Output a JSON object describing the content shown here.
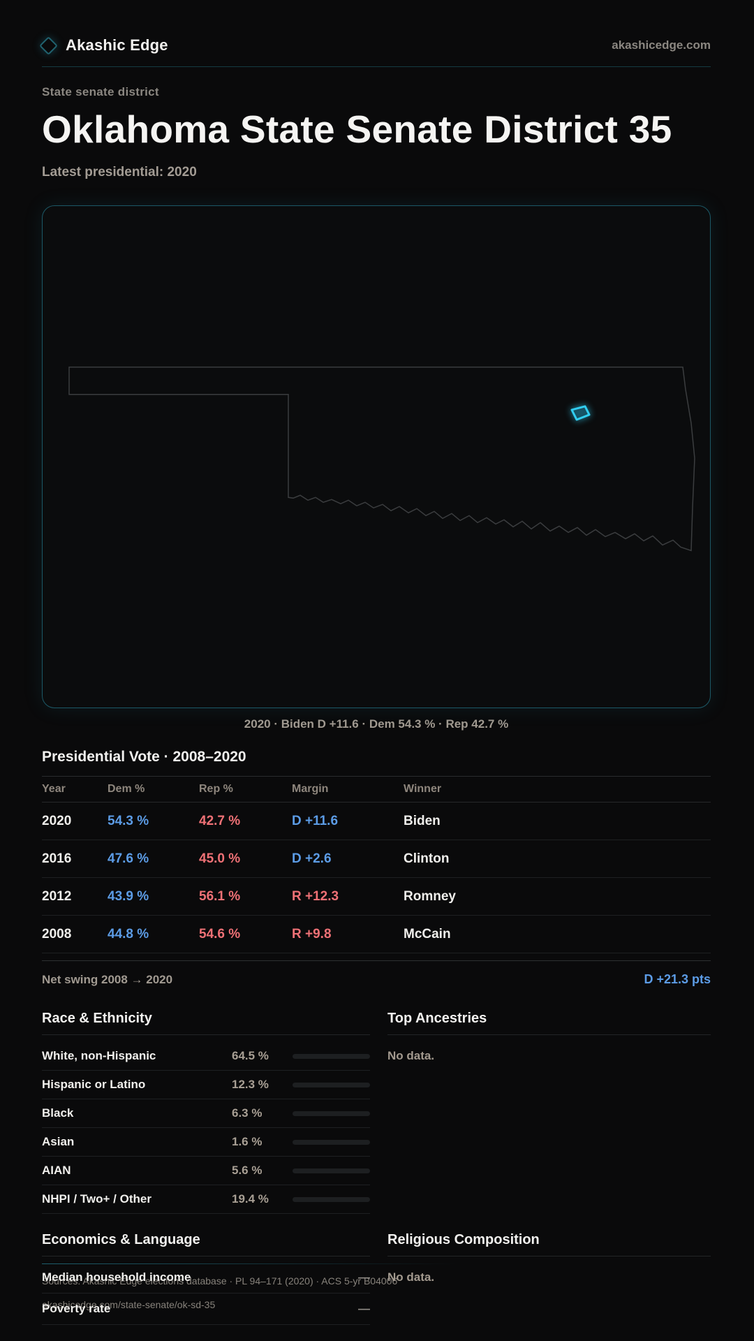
{
  "header": {
    "brand": "Akashic Edge",
    "domain": "akashicedge.com"
  },
  "hero": {
    "eyebrow": "State senate district",
    "title": "Oklahoma State Senate District 35",
    "subtitle": "Latest presidential: 2020"
  },
  "map": {
    "caption": "2020 · Biden D +11.6 · Dem 54.3 % · Rep 42.7 %"
  },
  "vote_table": {
    "title": "Presidential Vote · 2008–2020",
    "columns": [
      "Year",
      "Dem %",
      "Rep %",
      "Margin",
      "Winner"
    ],
    "rows": [
      {
        "year": "2020",
        "dem": "54.3 %",
        "rep": "42.7 %",
        "margin": "D +11.6",
        "margin_party": "D",
        "winner": "Biden"
      },
      {
        "year": "2016",
        "dem": "47.6 %",
        "rep": "45.0 %",
        "margin": "D +2.6",
        "margin_party": "D",
        "winner": "Clinton"
      },
      {
        "year": "2012",
        "dem": "43.9 %",
        "rep": "56.1 %",
        "margin": "R +12.3",
        "margin_party": "R",
        "winner": "Romney"
      },
      {
        "year": "2008",
        "dem": "44.8 %",
        "rep": "54.6 %",
        "margin": "R +9.8",
        "margin_party": "R",
        "winner": "McCain"
      }
    ],
    "net_swing_label": "Net swing 2008 → 2020",
    "net_swing_value": "D +21.3 pts"
  },
  "race": {
    "title": "Race & Ethnicity",
    "rows": [
      {
        "label": "White, non-Hispanic",
        "value": "64.5 %",
        "pct": 64.5
      },
      {
        "label": "Hispanic or Latino",
        "value": "12.3 %",
        "pct": 12.3
      },
      {
        "label": "Black",
        "value": "6.3 %",
        "pct": 6.3
      },
      {
        "label": "Asian",
        "value": "1.6 %",
        "pct": 1.6
      },
      {
        "label": "AIAN",
        "value": "5.6 %",
        "pct": 5.6
      },
      {
        "label": "NHPI / Two+ / Other",
        "value": "19.4 %",
        "pct": 19.4
      }
    ]
  },
  "ancestries": {
    "title": "Top Ancestries",
    "empty": "No data."
  },
  "economics": {
    "title": "Economics & Language",
    "rows": [
      {
        "label": "Median household income",
        "value": "—"
      },
      {
        "label": "Poverty rate",
        "value": "—"
      }
    ]
  },
  "religion": {
    "title": "Religious Composition",
    "empty": "No data."
  },
  "footer": {
    "sources": "Sources: Akashic Edge elections database · PL 94–171 (2020) · ACS 5-yr B04006",
    "permalink": "akashicedge.com/state-senate/ok-sd-35"
  },
  "colors": {
    "background": "#0a0a0b",
    "accent_teal": "#1c5866",
    "district_cyan": "#31cdf0",
    "dem_blue": "#5c9ce6",
    "rep_red": "#ef7176",
    "bar_fill": "#c9cbcd"
  }
}
